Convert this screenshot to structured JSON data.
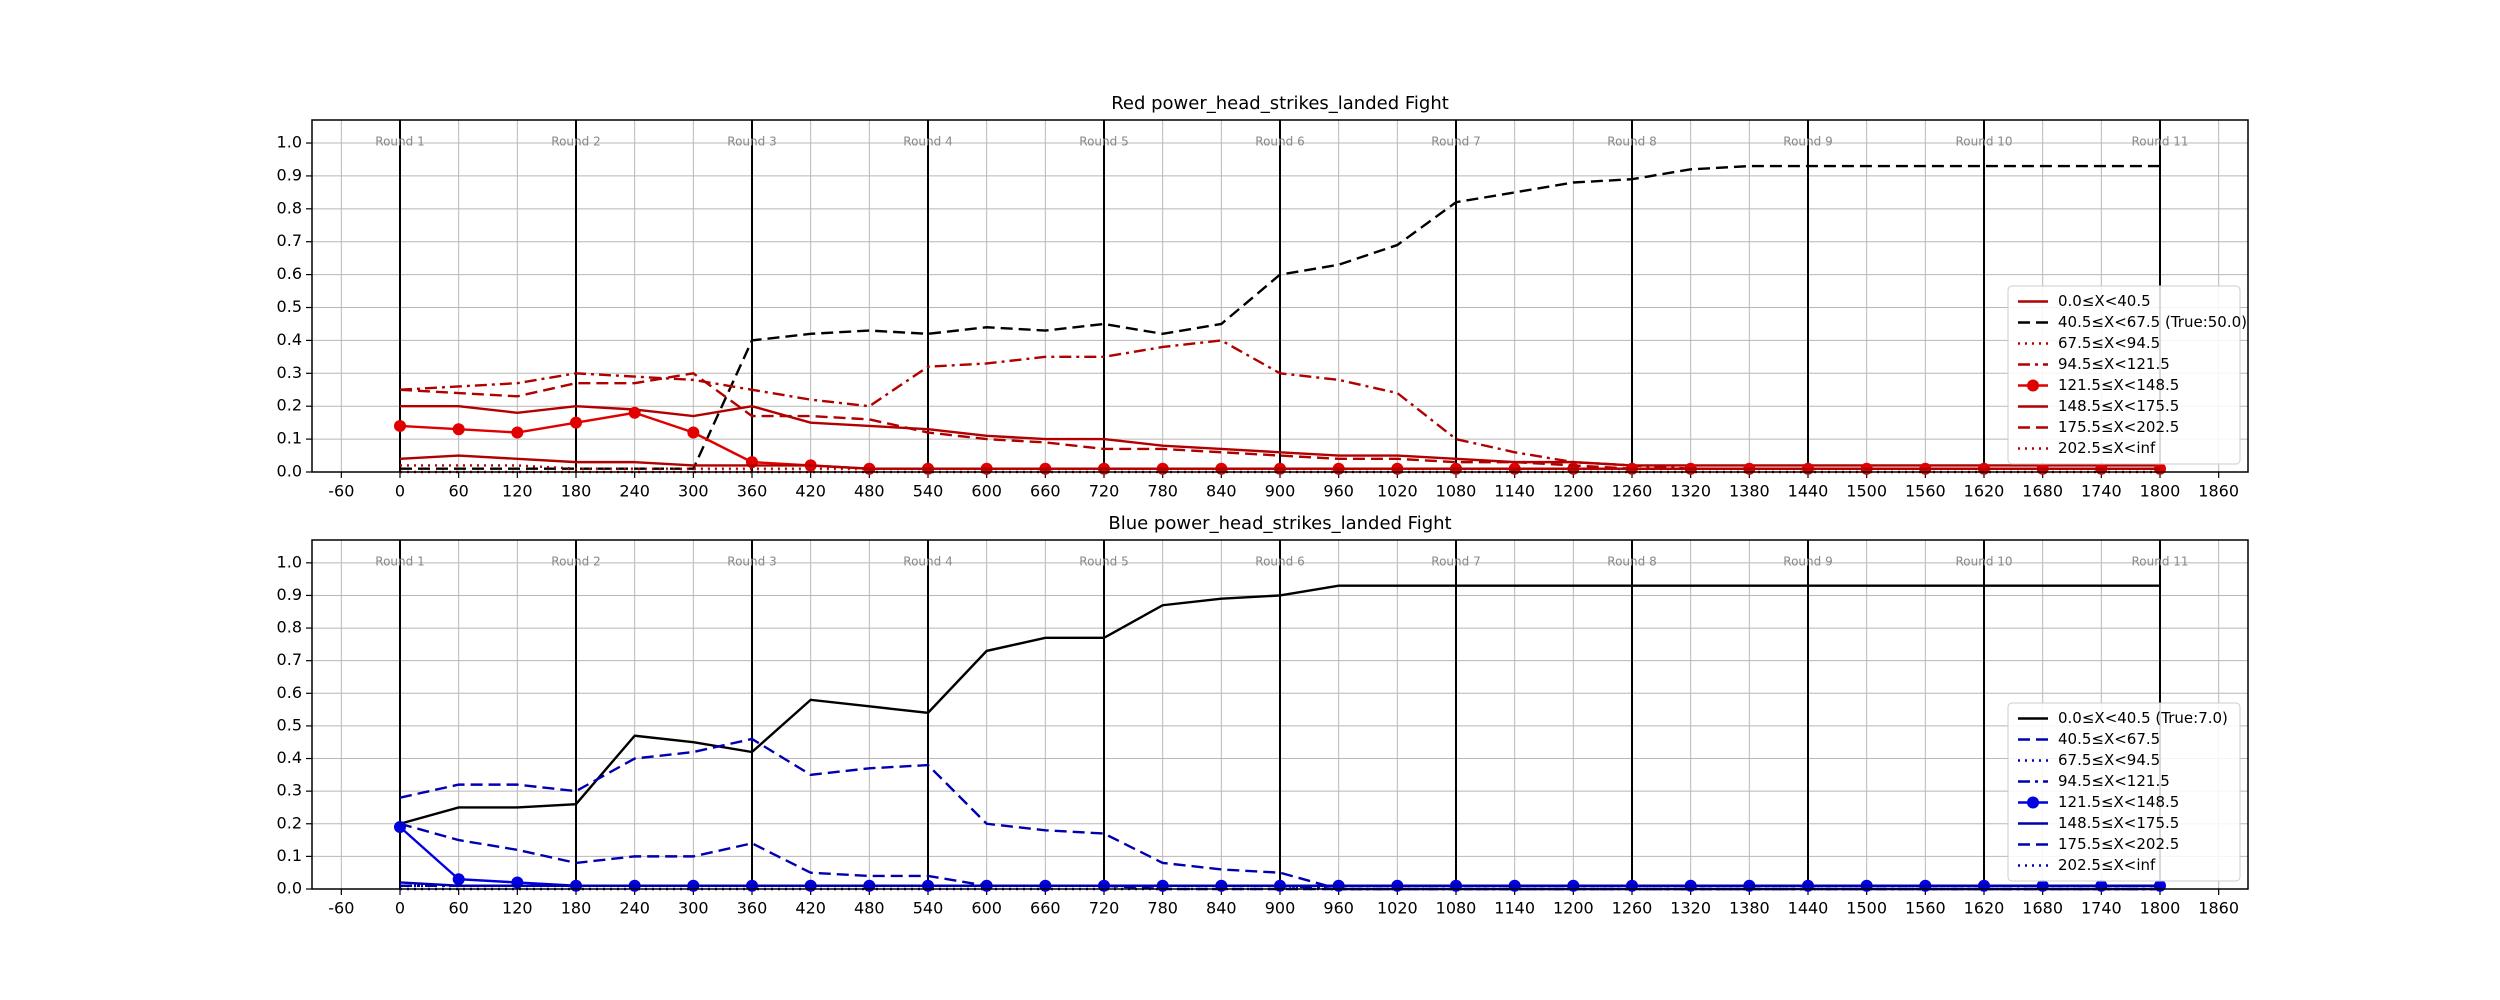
{
  "chart_data": [
    {
      "type": "line",
      "title": "Red power_head_strikes_landed Fight",
      "x": [
        0,
        60,
        120,
        180,
        240,
        300,
        360,
        420,
        480,
        540,
        600,
        660,
        720,
        780,
        840,
        900,
        960,
        1020,
        1080,
        1140,
        1200,
        1260,
        1320,
        1380,
        1440,
        1500,
        1560,
        1620,
        1680,
        1740,
        1800
      ],
      "series": [
        {
          "name": "0.0≤X<40.5",
          "color": "#b00000",
          "dash": "solid",
          "marker": "none",
          "values": [
            0.2,
            0.2,
            0.18,
            0.2,
            0.19,
            0.17,
            0.2,
            0.15,
            0.14,
            0.13,
            0.11,
            0.1,
            0.1,
            0.08,
            0.07,
            0.06,
            0.05,
            0.05,
            0.04,
            0.03,
            0.03,
            0.02,
            0.02,
            0.02,
            0.02,
            0.02,
            0.02,
            0.02,
            0.02,
            0.02,
            0.02
          ]
        },
        {
          "name": "40.5≤X<67.5 (True:50.0)",
          "color": "#000000",
          "dash": "dashed",
          "marker": "none",
          "values": [
            0.01,
            0.01,
            0.01,
            0.01,
            0.01,
            0.01,
            0.4,
            0.42,
            0.43,
            0.42,
            0.44,
            0.43,
            0.45,
            0.42,
            0.45,
            0.6,
            0.63,
            0.69,
            0.82,
            0.85,
            0.88,
            0.89,
            0.92,
            0.93,
            0.93,
            0.93,
            0.93,
            0.93,
            0.93,
            0.93,
            0.93
          ]
        },
        {
          "name": "67.5≤X<94.5",
          "color": "#b00000",
          "dash": "dotted",
          "marker": "none",
          "values": [
            0.02,
            0.02,
            0.02,
            0.01,
            0.01,
            0.01,
            0.01,
            0.01,
            0.01,
            0.01,
            0.01,
            0.01,
            0.01,
            0.01,
            0.01,
            0.01,
            0.01,
            0.01,
            0.01,
            0.01,
            0.01,
            0.01,
            0.01,
            0.01,
            0.01,
            0.01,
            0.01,
            0.01,
            0.01,
            0.01,
            0.01
          ]
        },
        {
          "name": "94.5≤X<121.5",
          "color": "#b00000",
          "dash": "dashdot",
          "marker": "none",
          "values": [
            0.25,
            0.26,
            0.27,
            0.3,
            0.29,
            0.28,
            0.25,
            0.22,
            0.2,
            0.32,
            0.33,
            0.35,
            0.35,
            0.38,
            0.4,
            0.3,
            0.28,
            0.24,
            0.1,
            0.06,
            0.03,
            0.02,
            0.01,
            0.01,
            0.01,
            0.01,
            0.01,
            0.01,
            0.01,
            0.01,
            0.01
          ]
        },
        {
          "name": "121.5≤X<148.5",
          "color": "#e00000",
          "dash": "solid",
          "marker": "o",
          "values": [
            0.14,
            0.13,
            0.12,
            0.15,
            0.18,
            0.12,
            0.03,
            0.02,
            0.01,
            0.01,
            0.01,
            0.01,
            0.01,
            0.01,
            0.01,
            0.01,
            0.01,
            0.01,
            0.01,
            0.01,
            0.01,
            0.01,
            0.01,
            0.01,
            0.01,
            0.01,
            0.01,
            0.01,
            0.01,
            0.01,
            0.01
          ]
        },
        {
          "name": "148.5≤X<175.5",
          "color": "#b00000",
          "dash": "solid",
          "marker": "none",
          "values": [
            0.04,
            0.05,
            0.04,
            0.03,
            0.03,
            0.02,
            0.02,
            0.02,
            0.01,
            0.01,
            0.01,
            0.01,
            0.01,
            0.01,
            0.01,
            0.01,
            0.01,
            0.01,
            0.01,
            0.01,
            0.01,
            0.01,
            0.01,
            0.01,
            0.01,
            0.01,
            0.01,
            0.01,
            0.01,
            0.01,
            0.01
          ]
        },
        {
          "name": "175.5≤X<202.5",
          "color": "#b00000",
          "dash": "dashed",
          "marker": "none",
          "values": [
            0.25,
            0.24,
            0.23,
            0.27,
            0.27,
            0.3,
            0.17,
            0.17,
            0.16,
            0.12,
            0.1,
            0.09,
            0.07,
            0.07,
            0.06,
            0.05,
            0.04,
            0.04,
            0.03,
            0.03,
            0.02,
            0.01,
            0.01,
            0.01,
            0.01,
            0.01,
            0.01,
            0.01,
            0.01,
            0.01,
            0.01
          ]
        },
        {
          "name": "202.5≤X<inf",
          "color": "#b00000",
          "dash": "dotted",
          "marker": "none",
          "values": [
            0,
            0,
            0,
            0,
            0,
            0,
            0,
            0,
            0,
            0,
            0,
            0,
            0,
            0,
            0,
            0,
            0,
            0,
            0,
            0,
            0,
            0,
            0,
            0,
            0,
            0,
            0,
            0,
            0,
            0,
            0
          ]
        }
      ],
      "rounds": [
        {
          "x": 0,
          "label": "Round 1"
        },
        {
          "x": 180,
          "label": "Round 2"
        },
        {
          "x": 360,
          "label": "Round 3"
        },
        {
          "x": 540,
          "label": "Round 4"
        },
        {
          "x": 720,
          "label": "Round 5"
        },
        {
          "x": 900,
          "label": "Round 6"
        },
        {
          "x": 1080,
          "label": "Round 7"
        },
        {
          "x": 1260,
          "label": "Round 8"
        },
        {
          "x": 1440,
          "label": "Round 9"
        },
        {
          "x": 1620,
          "label": "Round 10"
        },
        {
          "x": 1800,
          "label": "Round 11"
        }
      ],
      "xlim": [
        -90,
        1890
      ],
      "ylim": [
        0,
        1.07
      ],
      "xticks": [
        -60,
        0,
        60,
        120,
        180,
        240,
        300,
        360,
        420,
        480,
        540,
        600,
        660,
        720,
        780,
        840,
        900,
        960,
        1020,
        1080,
        1140,
        1200,
        1260,
        1320,
        1380,
        1440,
        1500,
        1560,
        1620,
        1680,
        1740,
        1800,
        1860
      ],
      "yticks": [
        {
          "value": 0,
          "label": "0.0"
        },
        0.1,
        0.2,
        0.3,
        0.4,
        0.5,
        0.6,
        0.7,
        0.8,
        0.9,
        {
          "value": 1,
          "label": "1.0"
        }
      ],
      "grid": true,
      "legend": "lower right"
    },
    {
      "type": "line",
      "title": "Blue power_head_strikes_landed Fight",
      "x": [
        0,
        60,
        120,
        180,
        240,
        300,
        360,
        420,
        480,
        540,
        600,
        660,
        720,
        780,
        840,
        900,
        960,
        1020,
        1080,
        1140,
        1200,
        1260,
        1320,
        1380,
        1440,
        1500,
        1560,
        1620,
        1680,
        1740,
        1800
      ],
      "series": [
        {
          "name": "0.0≤X<40.5 (True:7.0)",
          "color": "#000000",
          "dash": "solid",
          "marker": "none",
          "values": [
            0.2,
            0.25,
            0.25,
            0.26,
            0.47,
            0.45,
            0.42,
            0.58,
            0.56,
            0.54,
            0.73,
            0.77,
            0.77,
            0.87,
            0.89,
            0.9,
            0.93,
            0.93,
            0.93,
            0.93,
            0.93,
            0.93,
            0.93,
            0.93,
            0.93,
            0.93,
            0.93,
            0.93,
            0.93,
            0.93,
            0.93
          ]
        },
        {
          "name": "40.5≤X<67.5",
          "color": "#0000b0",
          "dash": "dashed",
          "marker": "none",
          "values": [
            0.28,
            0.32,
            0.32,
            0.3,
            0.4,
            0.42,
            0.46,
            0.35,
            0.37,
            0.38,
            0.2,
            0.18,
            0.17,
            0.08,
            0.06,
            0.05,
            0,
            0,
            0,
            0,
            0,
            0,
            0,
            0,
            0,
            0,
            0,
            0,
            0,
            0,
            0
          ]
        },
        {
          "name": "67.5≤X<94.5",
          "color": "#0000b0",
          "dash": "dotted",
          "marker": "none",
          "values": [
            0.01,
            0.01,
            0.01,
            0.01,
            0.01,
            0.01,
            0.01,
            0.01,
            0.01,
            0.01,
            0.01,
            0.01,
            0.01,
            0.01,
            0.01,
            0.01,
            0,
            0,
            0,
            0,
            0,
            0,
            0,
            0,
            0,
            0,
            0,
            0,
            0,
            0,
            0
          ]
        },
        {
          "name": "94.5≤X<121.5",
          "color": "#0000b0",
          "dash": "dashdot",
          "marker": "none",
          "values": [
            0.01,
            0.01,
            0.01,
            0.01,
            0.01,
            0.01,
            0.01,
            0.01,
            0.01,
            0.01,
            0.01,
            0.01,
            0.01,
            0.01,
            0.01,
            0.01,
            0,
            0,
            0,
            0,
            0,
            0,
            0,
            0,
            0,
            0,
            0,
            0,
            0,
            0,
            0
          ]
        },
        {
          "name": "121.5≤X<148.5",
          "color": "#0000e0",
          "dash": "solid",
          "marker": "o",
          "values": [
            0.19,
            0.03,
            0.02,
            0.01,
            0.01,
            0.01,
            0.01,
            0.01,
            0.01,
            0.01,
            0.01,
            0.01,
            0.01,
            0.01,
            0.01,
            0.01,
            0.01,
            0.01,
            0.01,
            0.01,
            0.01,
            0.01,
            0.01,
            0.01,
            0.01,
            0.01,
            0.01,
            0.01,
            0.01,
            0.01,
            0.01
          ]
        },
        {
          "name": "148.5≤X<175.5",
          "color": "#0000b0",
          "dash": "solid",
          "marker": "none",
          "values": [
            0.02,
            0.01,
            0.01,
            0.01,
            0.01,
            0.01,
            0.01,
            0.01,
            0.01,
            0.01,
            0.01,
            0.01,
            0.01,
            0.01,
            0.01,
            0.01,
            0.01,
            0.01,
            0.01,
            0.01,
            0.01,
            0.01,
            0.01,
            0.01,
            0.01,
            0.01,
            0.01,
            0.01,
            0.01,
            0.01,
            0.01
          ]
        },
        {
          "name": "175.5≤X<202.5",
          "color": "#0000b0",
          "dash": "dashed",
          "marker": "none",
          "values": [
            0.2,
            0.15,
            0.12,
            0.08,
            0.1,
            0.1,
            0.14,
            0.05,
            0.04,
            0.04,
            0.01,
            0.01,
            0.01,
            0,
            0,
            0,
            0,
            0,
            0,
            0,
            0,
            0,
            0,
            0,
            0,
            0,
            0,
            0,
            0,
            0,
            0
          ]
        },
        {
          "name": "202.5≤X<inf",
          "color": "#0000b0",
          "dash": "dotted",
          "marker": "none",
          "values": [
            0,
            0,
            0,
            0,
            0,
            0,
            0,
            0,
            0,
            0,
            0,
            0,
            0,
            0,
            0,
            0,
            0,
            0,
            0,
            0,
            0,
            0,
            0,
            0,
            0,
            0,
            0,
            0,
            0,
            0,
            0
          ]
        }
      ],
      "rounds": [
        {
          "x": 0,
          "label": "Round 1"
        },
        {
          "x": 180,
          "label": "Round 2"
        },
        {
          "x": 360,
          "label": "Round 3"
        },
        {
          "x": 540,
          "label": "Round 4"
        },
        {
          "x": 720,
          "label": "Round 5"
        },
        {
          "x": 900,
          "label": "Round 6"
        },
        {
          "x": 1080,
          "label": "Round 7"
        },
        {
          "x": 1260,
          "label": "Round 8"
        },
        {
          "x": 1440,
          "label": "Round 9"
        },
        {
          "x": 1620,
          "label": "Round 10"
        },
        {
          "x": 1800,
          "label": "Round 11"
        }
      ],
      "xlim": [
        -90,
        1890
      ],
      "ylim": [
        0,
        1.07
      ],
      "xticks": [
        -60,
        0,
        60,
        120,
        180,
        240,
        300,
        360,
        420,
        480,
        540,
        600,
        660,
        720,
        780,
        840,
        900,
        960,
        1020,
        1080,
        1140,
        1200,
        1260,
        1320,
        1380,
        1440,
        1500,
        1560,
        1620,
        1680,
        1740,
        1800,
        1860
      ],
      "yticks": [
        {
          "value": 0,
          "label": "0.0"
        },
        0.1,
        0.2,
        0.3,
        0.4,
        0.5,
        0.6,
        0.7,
        0.8,
        0.9,
        {
          "value": 1,
          "label": "1.0"
        }
      ],
      "grid": true,
      "legend": "lower right"
    }
  ]
}
